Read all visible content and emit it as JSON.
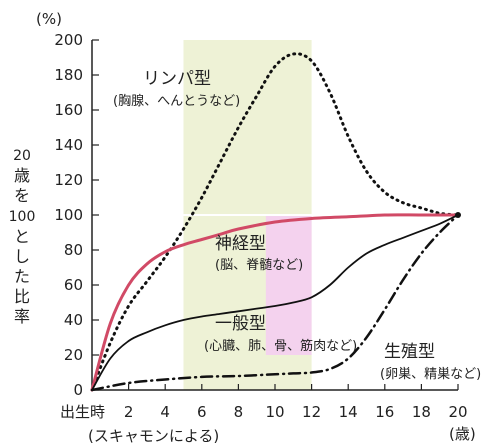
{
  "chart_data": {
    "type": "line",
    "unit_label": "(%)",
    "ylabel_chars": [
      "20",
      "歳",
      "を",
      "100",
      "と",
      "し",
      "た",
      "比",
      "率"
    ],
    "x_first_label": "出生時",
    "x_unit_label": "(歳)",
    "source": "(スキャモンによる)",
    "xlim": [
      0,
      20
    ],
    "ylim": [
      0,
      200
    ],
    "x_ticks": [
      2,
      4,
      6,
      8,
      10,
      12,
      14,
      16,
      18,
      20
    ],
    "y_ticks": [
      0,
      20,
      40,
      60,
      80,
      100,
      120,
      140,
      160,
      180,
      200
    ],
    "shaded_regions": [
      {
        "x0": 5,
        "x1": 12,
        "color": "#eef2d6"
      },
      {
        "x0": 9.5,
        "x1": 12,
        "y0": 20,
        "y1": 100,
        "color": "#f4d2ee"
      }
    ],
    "reference_line_y": 100,
    "series": [
      {
        "name": "リンパ型",
        "sub": "(胸腺、へんとうなど)",
        "style": "dotted",
        "color": "#111111",
        "x": [
          0,
          1,
          2,
          3,
          4,
          5,
          6,
          7,
          8,
          9,
          10,
          11,
          12,
          13,
          14,
          15,
          16,
          17,
          18,
          19,
          20
        ],
        "y": [
          0,
          27,
          48,
          62,
          76,
          92,
          110,
          130,
          150,
          168,
          185,
          192,
          188,
          170,
          145,
          125,
          113,
          107,
          104,
          101,
          100
        ]
      },
      {
        "name": "神経型",
        "sub": "(脳、脊髄など)",
        "style": "solid",
        "color": "#d14a66",
        "x": [
          0,
          1,
          2,
          3,
          4,
          5,
          6,
          7,
          8,
          10,
          12,
          14,
          16,
          18,
          20
        ],
        "y": [
          0,
          38,
          60,
          72,
          79,
          83,
          86,
          89,
          92,
          96,
          98,
          99,
          100,
          100,
          100
        ]
      },
      {
        "name": "一般型",
        "sub": "(心臓、肺、骨、筋肉など)",
        "style": "solid",
        "color": "#111111",
        "x": [
          0,
          1,
          2,
          3,
          4,
          5,
          6,
          7,
          8,
          9,
          10,
          11,
          12,
          13,
          14,
          15,
          16,
          17,
          18,
          19,
          20
        ],
        "y": [
          0,
          18,
          28,
          33,
          37,
          40,
          42,
          43.5,
          45,
          46.5,
          48,
          50,
          53,
          60,
          70,
          78,
          83,
          87,
          91,
          95,
          100
        ]
      },
      {
        "name": "生殖型",
        "sub": "(卵巣、精巣など)",
        "style": "dashdot",
        "color": "#111111",
        "x": [
          0,
          2,
          4,
          6,
          8,
          10,
          11,
          12,
          13,
          14,
          15,
          16,
          17,
          18,
          19,
          20
        ],
        "y": [
          0,
          4,
          6,
          7.5,
          8,
          9,
          9.5,
          10,
          12,
          18,
          30,
          46,
          63,
          78,
          90,
          100
        ]
      }
    ]
  }
}
